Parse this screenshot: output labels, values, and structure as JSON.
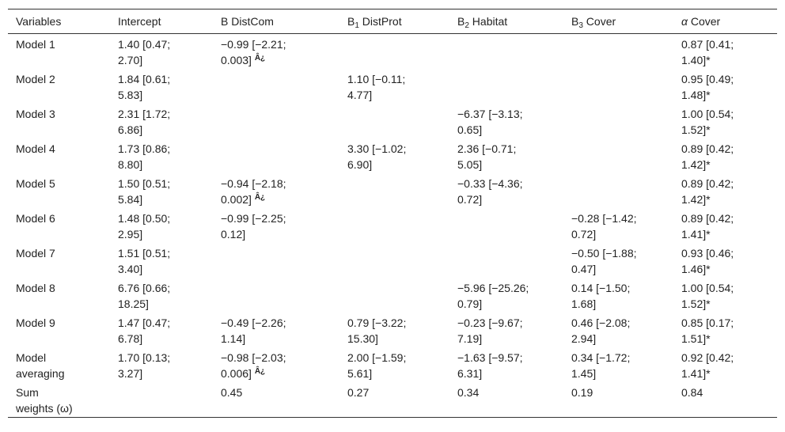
{
  "table": {
    "header": [
      {
        "text": "Variables"
      },
      {
        "text": "Intercept"
      },
      {
        "text": "B DistCom"
      },
      {
        "pre": "B",
        "sub": "1",
        "post": " DistProt"
      },
      {
        "pre": "B",
        "sub": "2",
        "post": " Habitat"
      },
      {
        "pre": "B",
        "sub": "3",
        "post": " Cover"
      },
      {
        "italic": "α",
        "post": " Cover"
      }
    ],
    "rows": [
      [
        {
          "lines": [
            "Model 1"
          ]
        },
        {
          "lines": [
            "1.40 [0.47;",
            "2.70]"
          ]
        },
        {
          "lines": [
            "−0.99 [−2.21;",
            "0.003]"
          ],
          "sup": "Â¿"
        },
        null,
        null,
        null,
        {
          "lines": [
            "0.87 [0.41;",
            "1.40]*"
          ]
        }
      ],
      [
        {
          "lines": [
            "Model 2"
          ]
        },
        {
          "lines": [
            "1.84 [0.61;",
            "5.83]"
          ]
        },
        null,
        {
          "lines": [
            "1.10 [−0.11;",
            "4.77]"
          ]
        },
        null,
        null,
        {
          "lines": [
            "0.95 [0.49;",
            "1.48]*"
          ]
        }
      ],
      [
        {
          "lines": [
            "Model 3"
          ]
        },
        {
          "lines": [
            "2.31 [1.72;",
            "6.86]"
          ]
        },
        null,
        null,
        {
          "lines": [
            "−6.37 [−3.13;",
            "0.65]"
          ]
        },
        null,
        {
          "lines": [
            "1.00 [0.54;",
            "1.52]*"
          ]
        }
      ],
      [
        {
          "lines": [
            "Model 4"
          ]
        },
        {
          "lines": [
            "1.73 [0.86;",
            "8.80]"
          ]
        },
        null,
        {
          "lines": [
            "3.30 [−1.02;",
            "6.90]"
          ]
        },
        {
          "lines": [
            "2.36 [−0.71;",
            "5.05]"
          ]
        },
        null,
        {
          "lines": [
            "0.89 [0.42;",
            "1.42]*"
          ]
        }
      ],
      [
        {
          "lines": [
            "Model 5"
          ]
        },
        {
          "lines": [
            "1.50 [0.51;",
            "5.84]"
          ]
        },
        {
          "lines": [
            "−0.94 [−2.18;",
            "0.002]"
          ],
          "sup": "Â¿"
        },
        null,
        {
          "lines": [
            "−0.33 [−4.36;",
            "0.72]"
          ]
        },
        null,
        {
          "lines": [
            "0.89 [0.42;",
            "1.42]*"
          ]
        }
      ],
      [
        {
          "lines": [
            "Model 6"
          ]
        },
        {
          "lines": [
            "1.48 [0.50;",
            "2.95]"
          ]
        },
        {
          "lines": [
            "−0.99 [−2.25;",
            "0.12]"
          ]
        },
        null,
        null,
        {
          "lines": [
            "−0.28 [−1.42;",
            "0.72]"
          ]
        },
        {
          "lines": [
            "0.89 [0.42;",
            "1.41]*"
          ]
        }
      ],
      [
        {
          "lines": [
            "Model 7"
          ]
        },
        {
          "lines": [
            "1.51 [0.51;",
            "3.40]"
          ]
        },
        null,
        null,
        null,
        {
          "lines": [
            "−0.50 [−1.88;",
            "0.47]"
          ]
        },
        {
          "lines": [
            "0.93 [0.46;",
            "1.46]*"
          ]
        }
      ],
      [
        {
          "lines": [
            "Model 8"
          ]
        },
        {
          "lines": [
            "6.76 [0.66;",
            "18.25]"
          ]
        },
        null,
        null,
        {
          "lines": [
            "−5.96 [−25.26;",
            "0.79]"
          ]
        },
        {
          "lines": [
            "0.14 [−1.50;",
            "1.68]"
          ]
        },
        {
          "lines": [
            "1.00 [0.54;",
            "1.52]*"
          ]
        }
      ],
      [
        {
          "lines": [
            "Model 9"
          ]
        },
        {
          "lines": [
            "1.47 [0.47;",
            "6.78]"
          ]
        },
        {
          "lines": [
            "−0.49 [−2.26;",
            "1.14]"
          ]
        },
        {
          "lines": [
            "0.79 [−3.22;",
            "15.30]"
          ]
        },
        {
          "lines": [
            "−0.23 [−9.67;",
            "7.19]"
          ]
        },
        {
          "lines": [
            "0.46 [−2.08;",
            "2.94]"
          ]
        },
        {
          "lines": [
            "0.85 [0.17;",
            "1.51]*"
          ]
        }
      ],
      [
        {
          "lines": [
            "Model",
            "averaging"
          ]
        },
        {
          "lines": [
            "1.70 [0.13;",
            "3.27]"
          ]
        },
        {
          "lines": [
            "−0.98 [−2.03;",
            "0.006]"
          ],
          "sup": "Â¿"
        },
        {
          "lines": [
            "2.00 [−1.59;",
            "5.61]"
          ]
        },
        {
          "lines": [
            "−1.63 [−9.57;",
            "6.31]"
          ]
        },
        {
          "lines": [
            "0.34 [−1.72;",
            "1.45]"
          ]
        },
        {
          "lines": [
            "0.92 [0.42;",
            "1.41]*"
          ]
        }
      ],
      [
        {
          "lines": [
            "Sum",
            "weights (ω)"
          ]
        },
        null,
        {
          "lines": [
            "0.45"
          ]
        },
        {
          "lines": [
            "0.27"
          ]
        },
        {
          "lines": [
            "0.34"
          ]
        },
        {
          "lines": [
            "0.19"
          ]
        },
        {
          "lines": [
            "0.84"
          ]
        }
      ]
    ]
  }
}
